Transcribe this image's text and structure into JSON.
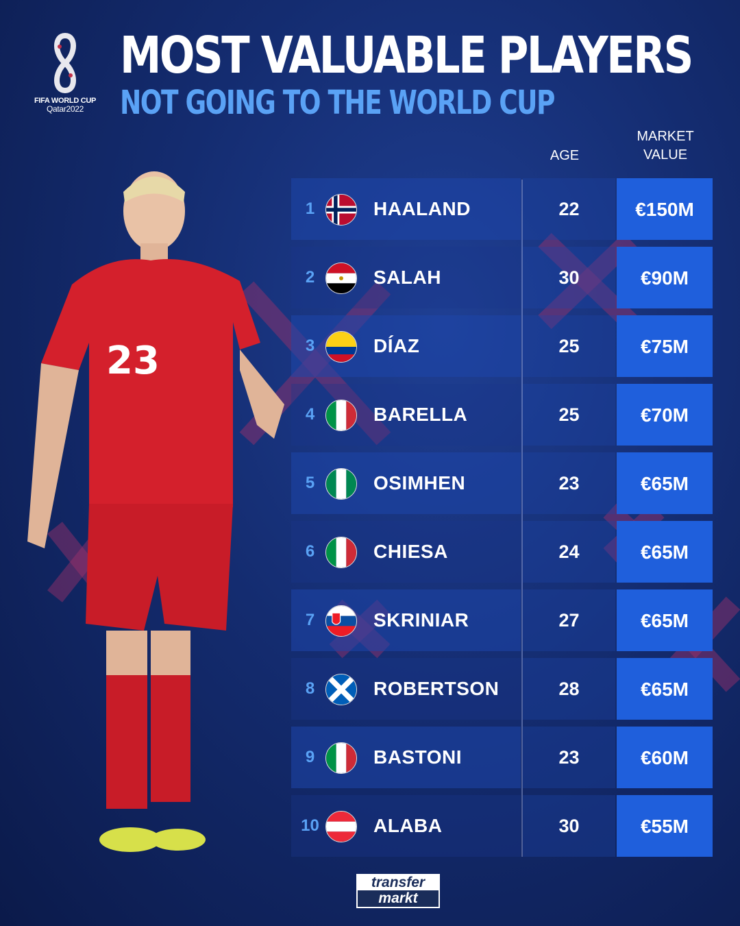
{
  "header": {
    "title": "MOST VALUABLE PLAYERS",
    "subtitle": "NOT GOING TO THE WORLD CUP"
  },
  "logo": {
    "line1": "FIFA WORLD CUP",
    "line2": "Qatar2022"
  },
  "columns": {
    "age": "AGE",
    "market_value_line1": "MARKET",
    "market_value_line2": "VALUE"
  },
  "players": [
    {
      "rank": "1",
      "flag": "norway",
      "name": "HAALAND",
      "age": "22",
      "value": "€150M"
    },
    {
      "rank": "2",
      "flag": "egypt",
      "name": "SALAH",
      "age": "30",
      "value": "€90M"
    },
    {
      "rank": "3",
      "flag": "colombia",
      "name": "DÍAZ",
      "age": "25",
      "value": "€75M"
    },
    {
      "rank": "4",
      "flag": "italy",
      "name": "BARELLA",
      "age": "25",
      "value": "€70M"
    },
    {
      "rank": "5",
      "flag": "nigeria",
      "name": "OSIMHEN",
      "age": "23",
      "value": "€65M"
    },
    {
      "rank": "6",
      "flag": "italy",
      "name": "CHIESA",
      "age": "24",
      "value": "€65M"
    },
    {
      "rank": "7",
      "flag": "slovakia",
      "name": "SKRINIAR",
      "age": "27",
      "value": "€65M"
    },
    {
      "rank": "8",
      "flag": "scotland",
      "name": "ROBERTSON",
      "age": "28",
      "value": "€65M"
    },
    {
      "rank": "9",
      "flag": "italy",
      "name": "BASTONI",
      "age": "23",
      "value": "€60M"
    },
    {
      "rank": "10",
      "flag": "austria",
      "name": "ALABA",
      "age": "30",
      "value": "€55M"
    }
  ],
  "footer": {
    "brand_line1": "transfer",
    "brand_line2": "markt"
  },
  "colors": {
    "accent": "#5aa2f5",
    "value_cell": "#1f5fdc",
    "background": "#142c70",
    "shirt": "#d4202c"
  }
}
